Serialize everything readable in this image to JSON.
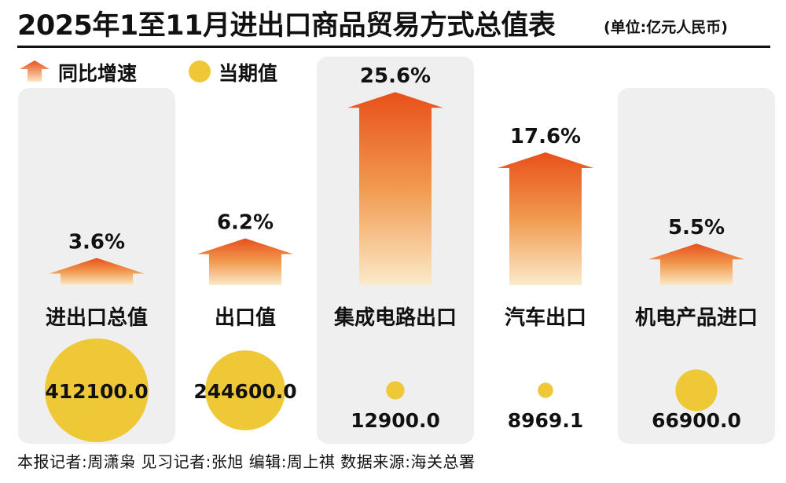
{
  "title": "2025年1至11月进出口商品贸易方式总值表",
  "unit": "(单位:亿元人民币)",
  "legend": {
    "growth_label": "同比增速",
    "value_label": "当期值"
  },
  "colors": {
    "arrow_top": "#e8501a",
    "arrow_bottom": "#fbe6c4",
    "bubble": "#efc838",
    "panel": "#efefef"
  },
  "chart_data": {
    "type": "bar",
    "title": "2025年1至11月进出口商品贸易方式总值表",
    "unit": "亿元人民币",
    "categories": [
      "进出口总值",
      "出口值",
      "集成电路出口",
      "汽车出口",
      "机电产品进口"
    ],
    "series": [
      {
        "name": "同比增速",
        "values": [
          3.6,
          6.2,
          25.6,
          17.6,
          5.5
        ],
        "labels": [
          "3.6%",
          "6.2%",
          "25.6%",
          "17.6%",
          "5.5%"
        ]
      },
      {
        "name": "当期值",
        "values": [
          412100.0,
          244600.0,
          12900.0,
          8969.1,
          66900.0
        ],
        "labels": [
          "412100.0",
          "244600.0",
          "12900.0",
          "8969.1",
          "66900.0"
        ]
      }
    ],
    "legend_position": "top-left",
    "grid": false
  },
  "footer": "本报记者:周潇枭   见习记者:张旭   编辑:周上祺   数据来源:海关总署"
}
